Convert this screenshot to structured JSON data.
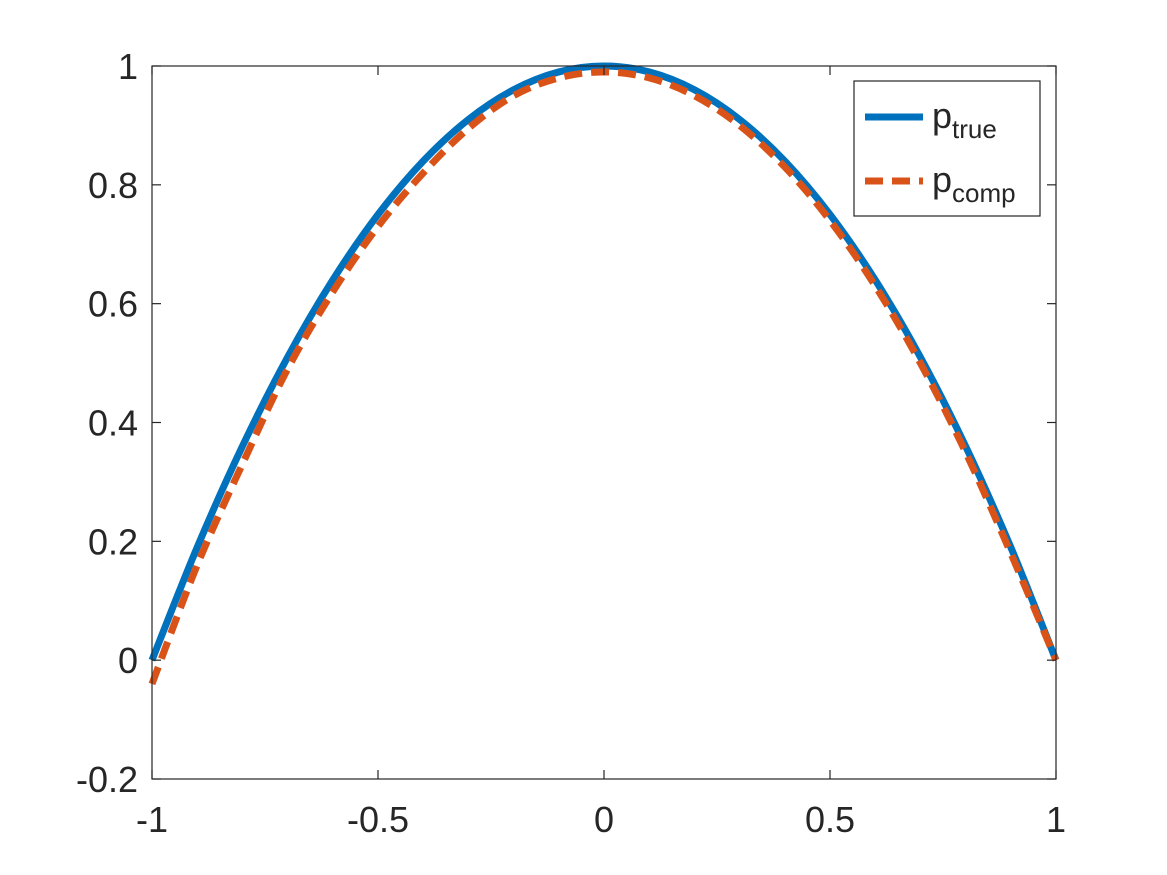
{
  "chart_data": {
    "type": "line",
    "title": "",
    "xlabel": "",
    "ylabel": "",
    "xlim": [
      -1,
      1
    ],
    "ylim": [
      -0.2,
      1
    ],
    "xticks": [
      -1,
      -0.5,
      0,
      0.5,
      1
    ],
    "xtick_labels": [
      "-1",
      "-0.5",
      "0",
      "0.5",
      "1"
    ],
    "yticks": [
      -0.2,
      0,
      0.2,
      0.4,
      0.6,
      0.8,
      1
    ],
    "ytick_labels": [
      "-0.2",
      "0",
      "0.2",
      "0.4",
      "0.6",
      "0.8",
      "1"
    ],
    "grid": false,
    "legend_position": "top-right",
    "series": [
      {
        "name_base": "p",
        "name_sub": "true",
        "color": "#0072BD",
        "style": "solid",
        "x": [
          -1,
          -0.9,
          -0.8,
          -0.7,
          -0.6,
          -0.5,
          -0.4,
          -0.3,
          -0.2,
          -0.1,
          0,
          0.1,
          0.2,
          0.3,
          0.4,
          0.5,
          0.6,
          0.7,
          0.8,
          0.9,
          1
        ],
        "y": [
          0,
          0.19,
          0.36,
          0.51,
          0.64,
          0.75,
          0.84,
          0.91,
          0.96,
          0.99,
          1,
          0.99,
          0.96,
          0.91,
          0.84,
          0.75,
          0.64,
          0.51,
          0.36,
          0.19,
          0
        ]
      },
      {
        "name_base": "p",
        "name_sub": "comp",
        "color": "#D95319",
        "style": "dashed",
        "x": [
          -1,
          -0.9,
          -0.8,
          -0.7,
          -0.6,
          -0.5,
          -0.4,
          -0.3,
          -0.2,
          -0.1,
          0,
          0.1,
          0.2,
          0.3,
          0.4,
          0.5,
          0.6,
          0.7,
          0.8,
          0.9,
          1
        ],
        "y": [
          -0.04,
          0.16,
          0.33,
          0.49,
          0.62,
          0.73,
          0.82,
          0.895,
          0.95,
          0.98,
          0.99,
          0.98,
          0.95,
          0.9,
          0.83,
          0.74,
          0.63,
          0.5,
          0.35,
          0.18,
          0
        ]
      }
    ]
  }
}
